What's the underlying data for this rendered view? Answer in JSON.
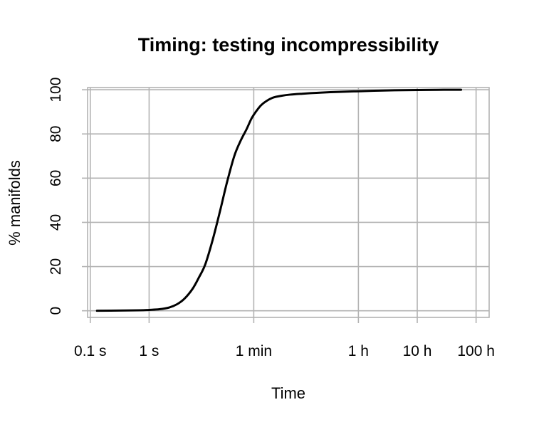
{
  "chart_data": {
    "type": "line",
    "title": "Timing: testing incompressibility",
    "xlabel": "Time",
    "ylabel": "% manifolds",
    "x_scale": "log",
    "x_unit": "seconds",
    "xlim": [
      0.09,
      600000
    ],
    "ylim": [
      -3,
      101
    ],
    "x_ticks": [
      {
        "value": 0.1,
        "label": "0.1 s"
      },
      {
        "value": 1,
        "label": "1 s"
      },
      {
        "value": 60,
        "label": "1 min"
      },
      {
        "value": 3600,
        "label": "1 h"
      },
      {
        "value": 36000,
        "label": "10 h"
      },
      {
        "value": 360000,
        "label": "100 h"
      }
    ],
    "y_ticks": [
      {
        "value": 0,
        "label": "0"
      },
      {
        "value": 20,
        "label": "20"
      },
      {
        "value": 40,
        "label": "40"
      },
      {
        "value": 60,
        "label": "60"
      },
      {
        "value": 80,
        "label": "80"
      },
      {
        "value": 100,
        "label": "100"
      }
    ],
    "grid": true,
    "series": [
      {
        "x": [
          0.13,
          0.3,
          0.7,
          1.0,
          1.5,
          2.2,
          3.0,
          4.0,
          5.5,
          7.0,
          9.0,
          12,
          16,
          21,
          28,
          36,
          45,
          55,
          65,
          80,
          100,
          130,
          180,
          250,
          400,
          700,
          1200,
          2500,
          3600,
          8000,
          20000,
          50000,
          100000,
          200000
        ],
        "y": [
          0,
          0.1,
          0.2,
          0.4,
          0.7,
          1.5,
          3,
          5.5,
          10,
          15,
          21,
          32,
          45,
          58,
          70,
          77,
          82,
          87,
          90,
          93,
          95,
          96.5,
          97.3,
          97.8,
          98.2,
          98.6,
          98.9,
          99.2,
          99.3,
          99.6,
          99.8,
          99.9,
          100,
          100
        ],
        "color": "#000000"
      }
    ]
  }
}
